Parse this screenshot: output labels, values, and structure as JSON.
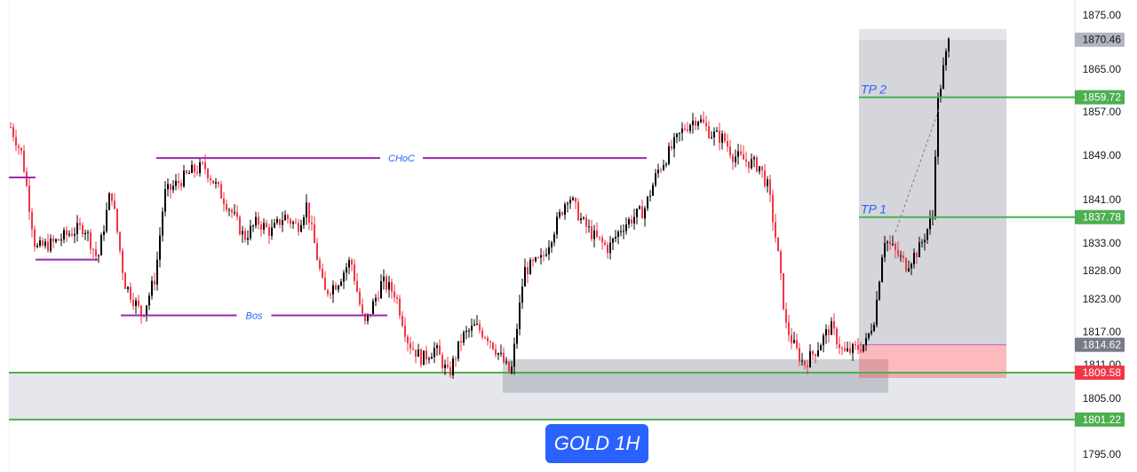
{
  "chart_data": {
    "type": "candlestick",
    "symbol_label": "GOLD 1H",
    "y_axis": {
      "ticks": [
        "1875.00",
        "1865.00",
        "1857.00",
        "1849.00",
        "1841.00",
        "1833.00",
        "1828.00",
        "1823.00",
        "1817.00",
        "1811.00",
        "1805.00",
        "1795.00"
      ],
      "range": [
        1793,
        1877
      ]
    },
    "price_tags": [
      {
        "value": "1870.46",
        "color": "#b2b5be",
        "text_color": "#131722"
      },
      {
        "value": "1859.72",
        "color": "#4caf50",
        "text_color": "#ffffff"
      },
      {
        "value": "1837.78",
        "color": "#4caf50",
        "text_color": "#ffffff"
      },
      {
        "value": "1814.62",
        "color": "#787b86",
        "text_color": "#ffffff"
      },
      {
        "value": "1809.58",
        "color": "#f23645",
        "text_color": "#ffffff"
      },
      {
        "value": "1801.22",
        "color": "#4caf50",
        "text_color": "#ffffff"
      }
    ],
    "annotations": [
      {
        "text": "CHoC",
        "price": 1848.5,
        "color": "#9c27b0"
      },
      {
        "text": "Bos",
        "price": 1820.0,
        "color": "#9c27b0"
      }
    ],
    "targets": [
      {
        "text": "TP 2",
        "price": 1859.72,
        "color": "#4caf50"
      },
      {
        "text": "TP 1",
        "price": 1837.78,
        "color": "#4caf50"
      }
    ],
    "support_zone": {
      "upper": 1809.58,
      "lower": 1801.22,
      "color": "#4caf50"
    },
    "demand_zone": {
      "upper": 1812.0,
      "lower": 1806.0
    },
    "position": {
      "entry": 1814.62,
      "stop": 1809.58,
      "target": 1870.46
    },
    "series_path": [
      [
        0,
        1858
      ],
      [
        10,
        1855
      ],
      [
        25,
        1849
      ],
      [
        40,
        1832
      ],
      [
        60,
        1833
      ],
      [
        80,
        1835
      ],
      [
        95,
        1836
      ],
      [
        110,
        1830
      ],
      [
        125,
        1843
      ],
      [
        140,
        1826
      ],
      [
        160,
        1820
      ],
      [
        175,
        1827
      ],
      [
        185,
        1842
      ],
      [
        200,
        1844
      ],
      [
        215,
        1846
      ],
      [
        230,
        1847
      ],
      [
        245,
        1843
      ],
      [
        260,
        1839
      ],
      [
        275,
        1834
      ],
      [
        290,
        1837
      ],
      [
        305,
        1835
      ],
      [
        320,
        1838
      ],
      [
        335,
        1836
      ],
      [
        345,
        1840
      ],
      [
        355,
        1832
      ],
      [
        365,
        1824
      ],
      [
        380,
        1826
      ],
      [
        395,
        1830
      ],
      [
        410,
        1818
      ],
      [
        420,
        1822
      ],
      [
        430,
        1826
      ],
      [
        445,
        1824
      ],
      [
        460,
        1815
      ],
      [
        475,
        1812
      ],
      [
        490,
        1814
      ],
      [
        505,
        1809
      ],
      [
        520,
        1816
      ],
      [
        535,
        1818
      ],
      [
        550,
        1816
      ],
      [
        565,
        1812
      ],
      [
        575,
        1809
      ],
      [
        590,
        1828
      ],
      [
        610,
        1830
      ],
      [
        625,
        1836
      ],
      [
        640,
        1842
      ],
      [
        655,
        1837
      ],
      [
        670,
        1834
      ],
      [
        685,
        1832
      ],
      [
        700,
        1836
      ],
      [
        715,
        1838
      ],
      [
        725,
        1839
      ],
      [
        740,
        1846
      ],
      [
        755,
        1850
      ],
      [
        770,
        1854
      ],
      [
        785,
        1856
      ],
      [
        800,
        1853
      ],
      [
        815,
        1852
      ],
      [
        825,
        1849
      ],
      [
        840,
        1848
      ],
      [
        855,
        1847
      ],
      [
        865,
        1843
      ],
      [
        875,
        1832
      ],
      [
        885,
        1818
      ],
      [
        895,
        1814
      ],
      [
        905,
        1811
      ],
      [
        920,
        1814
      ],
      [
        935,
        1818
      ],
      [
        950,
        1813
      ],
      [
        965,
        1814
      ],
      [
        975,
        1815
      ],
      [
        985,
        1820
      ],
      [
        995,
        1834
      ],
      [
        1010,
        1831
      ],
      [
        1020,
        1829
      ],
      [
        1035,
        1832
      ],
      [
        1045,
        1836
      ],
      [
        1050,
        1838
      ],
      [
        1055,
        1858
      ],
      [
        1062,
        1865
      ],
      [
        1068,
        1870
      ]
    ]
  }
}
